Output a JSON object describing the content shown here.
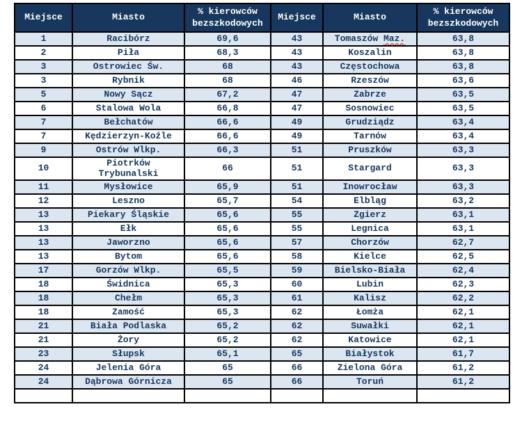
{
  "table": {
    "colors": {
      "page_bg": "#FFFFFF",
      "header_bg": "#17375E",
      "header_text": "#FFFFFF",
      "row_bg": "#FFFFFF",
      "row_alt_bg": "#DCE6F1",
      "text_color": "#17375E",
      "border_color": "#000000",
      "squiggle_color": "#D40000"
    },
    "headers": {
      "place": "Miejsce",
      "city": "Miasto",
      "pct_line1": "% kierowców",
      "pct_line2": "bezszkodowych"
    },
    "tall_row_index": 9,
    "left_rows": [
      {
        "place": "1",
        "city": "Racibórz",
        "pct": "69,6"
      },
      {
        "place": "2",
        "city": "Piła",
        "pct": "68,3"
      },
      {
        "place": "3",
        "city": "Ostrowiec Św.",
        "pct": "68"
      },
      {
        "place": "3",
        "city": "Rybnik",
        "pct": "68"
      },
      {
        "place": "5",
        "city": "Nowy Sącz",
        "pct": "67,2"
      },
      {
        "place": "6",
        "city": "Stalowa Wola",
        "pct": "66,8"
      },
      {
        "place": "7",
        "city": "Bełchatów",
        "pct": "66,6"
      },
      {
        "place": "7",
        "city": "Kędzierzyn-Koźle",
        "pct": "66,6"
      },
      {
        "place": "9",
        "city": "Ostrów Wlkp.",
        "pct": "66,3"
      },
      {
        "place": "10",
        "city": "Piotrków\nTrybunalski",
        "pct": "66"
      },
      {
        "place": "11",
        "city": "Mysłowice",
        "pct": "65,9"
      },
      {
        "place": "12",
        "city": "Leszno",
        "pct": "65,7"
      },
      {
        "place": "13",
        "city": "Piekary Śląskie",
        "pct": "65,6"
      },
      {
        "place": "13",
        "city": "Ełk",
        "pct": "65,6"
      },
      {
        "place": "13",
        "city": "Jaworzno",
        "pct": "65,6"
      },
      {
        "place": "13",
        "city": "Bytom",
        "pct": "65,6"
      },
      {
        "place": "17",
        "city": "Gorzów Wlkp.",
        "pct": "65,5"
      },
      {
        "place": "18",
        "city": "Świdnica",
        "pct": "65,3"
      },
      {
        "place": "18",
        "city": "Chełm",
        "pct": "65,3"
      },
      {
        "place": "18",
        "city": "Zamość",
        "pct": "65,3"
      },
      {
        "place": "21",
        "city": "Biała Podlaska",
        "pct": "65,2"
      },
      {
        "place": "21",
        "city": "Żory",
        "pct": "65,2"
      },
      {
        "place": "23",
        "city": "Słupsk",
        "pct": "65,1"
      },
      {
        "place": "24",
        "city": "Jelenia Góra",
        "pct": "65"
      },
      {
        "place": "24",
        "city": "Dąbrowa Górnicza",
        "pct": "65"
      }
    ],
    "right_rows": [
      {
        "place": "43",
        "city": "Tomaszów Maz.",
        "pct": "63,8",
        "misspelled": "Maz."
      },
      {
        "place": "43",
        "city": "Koszalin",
        "pct": "63,8"
      },
      {
        "place": "43",
        "city": "Częstochowa",
        "pct": "63,8"
      },
      {
        "place": "46",
        "city": "Rzeszów",
        "pct": "63,6"
      },
      {
        "place": "47",
        "city": "Zabrze",
        "pct": "63,5"
      },
      {
        "place": "47",
        "city": "Sosnowiec",
        "pct": "63,5"
      },
      {
        "place": "49",
        "city": "Grudziądz",
        "pct": "63,4"
      },
      {
        "place": "49",
        "city": "Tarnów",
        "pct": "63,4"
      },
      {
        "place": "51",
        "city": "Pruszków",
        "pct": "63,3"
      },
      {
        "place": "51",
        "city": "Stargard",
        "pct": "63,3"
      },
      {
        "place": "51",
        "city": "Inowrocław",
        "pct": "63,3"
      },
      {
        "place": "54",
        "city": "Elbląg",
        "pct": "63,2"
      },
      {
        "place": "55",
        "city": "Zgierz",
        "pct": "63,1"
      },
      {
        "place": "55",
        "city": "Legnica",
        "pct": "63,1"
      },
      {
        "place": "57",
        "city": "Chorzów",
        "pct": "62,7"
      },
      {
        "place": "58",
        "city": "Kielce",
        "pct": "62,5"
      },
      {
        "place": "59",
        "city": "Bielsko-Biała",
        "pct": "62,4"
      },
      {
        "place": "60",
        "city": "Lubin",
        "pct": "62,3"
      },
      {
        "place": "61",
        "city": "Kalisz",
        "pct": "62,2"
      },
      {
        "place": "62",
        "city": "Łomża",
        "pct": "62,1"
      },
      {
        "place": "62",
        "city": "Suwałki",
        "pct": "62,1"
      },
      {
        "place": "62",
        "city": "Katowice",
        "pct": "62,1"
      },
      {
        "place": "65",
        "city": "Białystok",
        "pct": "61,7"
      },
      {
        "place": "66",
        "city": "Zielona Góra",
        "pct": "61,2"
      },
      {
        "place": "66",
        "city": "Toruń",
        "pct": "61,2"
      }
    ]
  }
}
